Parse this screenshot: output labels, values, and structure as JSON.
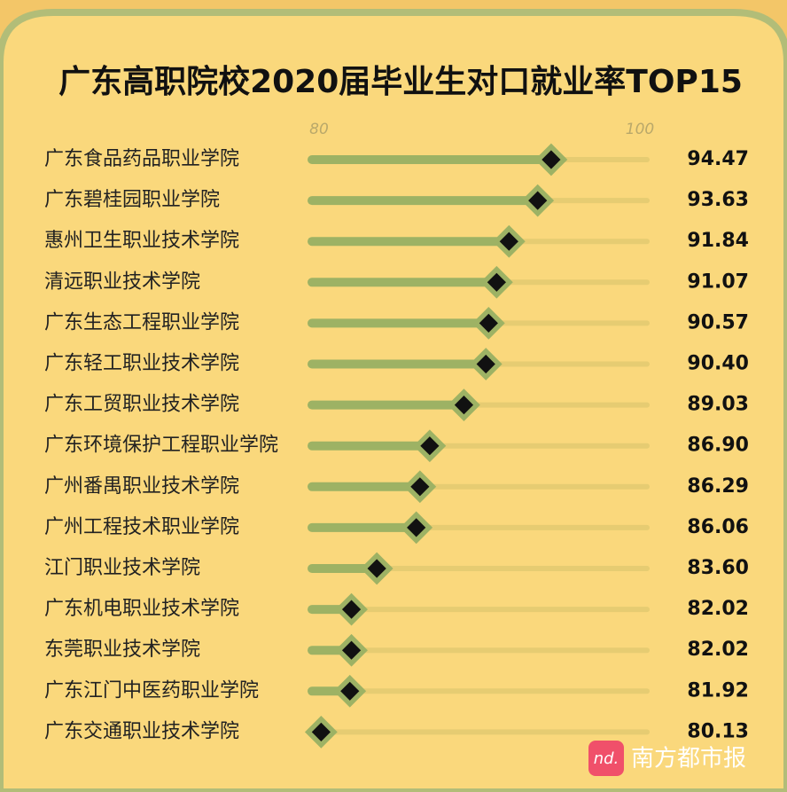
{
  "chart_data": {
    "type": "lollipop",
    "title": "广东高职院校2020届毕业生对口就业率TOP15",
    "categories": [
      "广东食品药品职业学院",
      "广东碧桂园职业学院",
      "惠州卫生职业技术学院",
      "清远职业技术学院",
      "广东生态工程职业学院",
      "广东轻工职业技术学院",
      "广东工贸职业技术学院",
      "广东环境保护工程职业学院",
      "广州番禺职业技术学院",
      "广州工程技术职业学院",
      "江门职业技术学院",
      "广东机电职业技术学院",
      "东莞职业技术学院",
      "广东江门中医药职业学院",
      "广东交通职业技术学院"
    ],
    "values": [
      94.47,
      93.63,
      91.84,
      91.07,
      90.57,
      90.4,
      89.03,
      86.9,
      86.29,
      86.06,
      83.6,
      82.02,
      82.02,
      81.92,
      80.13
    ],
    "value_labels": [
      "94.47",
      "93.63",
      "91.84",
      "91.07",
      "90.57",
      "90.40",
      "89.03",
      "86.90",
      "86.29",
      "86.06",
      "83.60",
      "82.02",
      "82.02",
      "81.92",
      "80.13"
    ],
    "xlim": [
      80,
      100
    ],
    "xticks": [
      80,
      100
    ],
    "color": "#9db264",
    "track_color": "#e6cc72",
    "marker_color": "#111111"
  },
  "watermark": {
    "logo": "nd.",
    "text": "南方都市报"
  }
}
